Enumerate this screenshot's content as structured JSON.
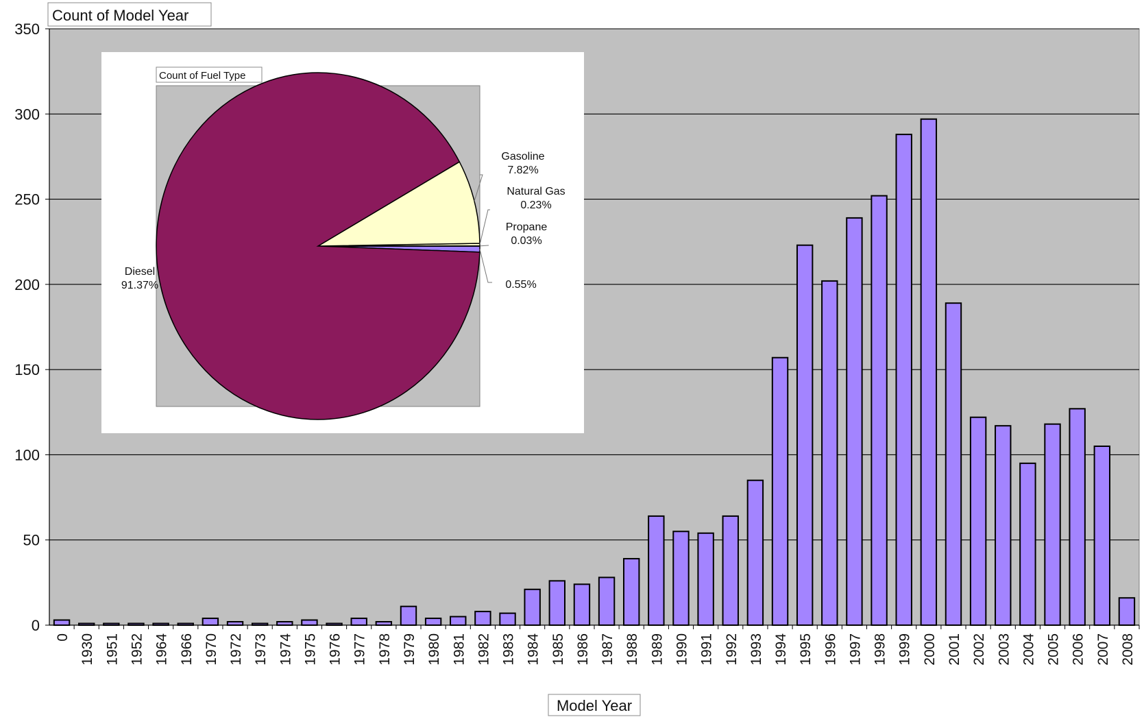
{
  "chart_data": [
    {
      "type": "bar",
      "title": "Count of Model Year",
      "xlabel": "Model Year",
      "ylabel": "",
      "ylim": [
        0,
        350
      ],
      "yticks": [
        0,
        50,
        100,
        150,
        200,
        250,
        300,
        350
      ],
      "grid": true,
      "categories": [
        "0",
        "1930",
        "1951",
        "1952",
        "1964",
        "1966",
        "1970",
        "1972",
        "1973",
        "1974",
        "1975",
        "1976",
        "1977",
        "1978",
        "1979",
        "1980",
        "1981",
        "1982",
        "1983",
        "1984",
        "1985",
        "1986",
        "1987",
        "1988",
        "1989",
        "1990",
        "1991",
        "1992",
        "1993",
        "1994",
        "1995",
        "1996",
        "1997",
        "1998",
        "1999",
        "2000",
        "2001",
        "2002",
        "2003",
        "2004",
        "2005",
        "2006",
        "2007",
        "2008"
      ],
      "values": [
        3,
        1,
        1,
        1,
        1,
        1,
        4,
        2,
        1,
        2,
        3,
        1,
        4,
        2,
        11,
        4,
        5,
        8,
        7,
        21,
        26,
        24,
        28,
        39,
        64,
        55,
        54,
        64,
        85,
        157,
        223,
        202,
        239,
        252,
        288,
        297,
        189,
        122,
        117,
        95,
        118,
        127,
        105,
        16
      ],
      "colors": {
        "bar": "#a384ff",
        "plot_bg": "#c0c0c0",
        "grid": "#000000"
      }
    },
    {
      "type": "pie",
      "title": "Count of Fuel Type",
      "slices": [
        {
          "label": "Diesel",
          "value": 91.37,
          "text": "91.37%",
          "color": "#8b1a5c"
        },
        {
          "label": "Gasoline",
          "value": 7.82,
          "text": "7.82%",
          "color": "#ffffcc"
        },
        {
          "label": "Natural Gas",
          "value": 0.23,
          "text": "0.23%",
          "color": "#ffffcc"
        },
        {
          "label": "Propane",
          "value": 0.03,
          "text": "0.03%",
          "color": "#8b1a5c"
        },
        {
          "label": "",
          "value": 0.55,
          "text": "0.55%",
          "color": "#9f7fff"
        }
      ]
    }
  ]
}
